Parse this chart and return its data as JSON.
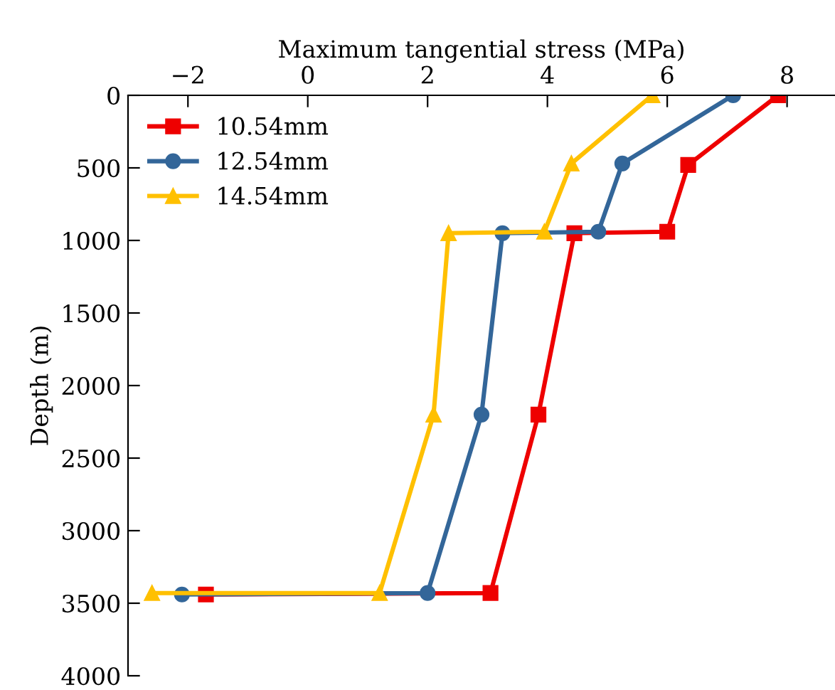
{
  "chart_data": {
    "type": "line",
    "xlabel": "Maximum tangential stress (MPa)",
    "ylabel": "Depth (m)",
    "series": [
      {
        "name": "10.54mm",
        "color": "#ee0000",
        "marker": "square",
        "x": [
          7.85,
          6.35,
          6.0,
          4.45,
          3.85,
          3.05,
          -1.7
        ],
        "values": [
          0,
          480,
          940,
          950,
          2200,
          3430,
          3440
        ]
      },
      {
        "name": "12.54mm",
        "color": "#336699",
        "marker": "circle",
        "x": [
          7.1,
          5.25,
          4.85,
          3.25,
          2.9,
          2.0,
          -2.1
        ],
        "values": [
          0,
          470,
          940,
          950,
          2200,
          3430,
          3440
        ]
      },
      {
        "name": "14.54mm",
        "color": "#ffc000",
        "marker": "triangle",
        "x": [
          5.75,
          4.4,
          3.95,
          2.35,
          2.1,
          1.2,
          -2.6
        ],
        "values": [
          0,
          470,
          940,
          950,
          2200,
          3430,
          3430
        ]
      }
    ],
    "xlim": [
      -3,
      8.8
    ],
    "xticks": [
      -2,
      0,
      2,
      4,
      6,
      8
    ],
    "ylim": [
      4000,
      0
    ],
    "yticks": [
      0,
      500,
      1000,
      1500,
      2000,
      2500,
      3000,
      3500,
      4000
    ],
    "grid": false,
    "legend": "top left",
    "line_style": "solid"
  }
}
